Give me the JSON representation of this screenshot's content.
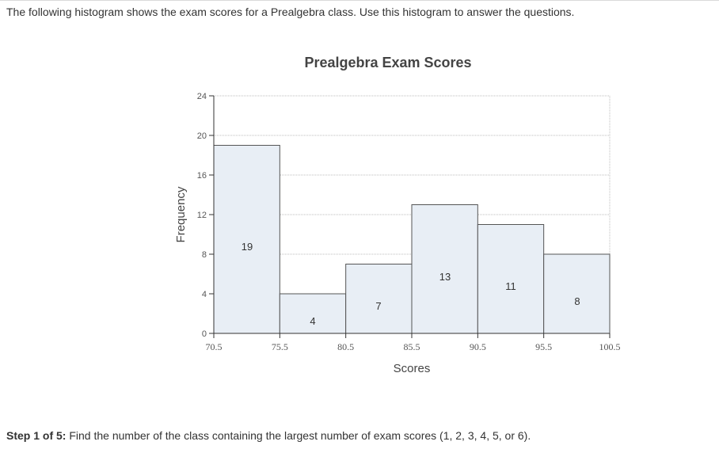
{
  "intro_text": "The following histogram shows the exam scores for a Prealgebra class. Use this histogram to answer the questions.",
  "step": {
    "label": "Step 1 of 5:",
    "text": " Find the number of the class containing the largest number of exam scores (1, 2, 3, 4, 5, or 6)."
  },
  "chart_data": {
    "type": "bar",
    "title": "Prealgebra Exam Scores",
    "xlabel": "Scores",
    "ylabel": "Frequency",
    "x_ticks": [
      "70.5",
      "75.5",
      "80.5",
      "85.5",
      "90.5",
      "95.5",
      "100.5"
    ],
    "bin_edges": [
      70.5,
      75.5,
      80.5,
      85.5,
      90.5,
      95.5,
      100.5
    ],
    "values": [
      19,
      4,
      7,
      13,
      11,
      8
    ],
    "value_labels": [
      "19",
      "4",
      "7",
      "13",
      "11",
      "8"
    ],
    "y_ticks": [
      "0",
      "4",
      "8",
      "12",
      "16",
      "20",
      "24"
    ],
    "ylim": [
      0,
      24
    ],
    "grid": true,
    "colors": {
      "bar_fill": "#e8eef5",
      "bar_stroke": "#555555",
      "grid": "#bdbdbd"
    }
  }
}
